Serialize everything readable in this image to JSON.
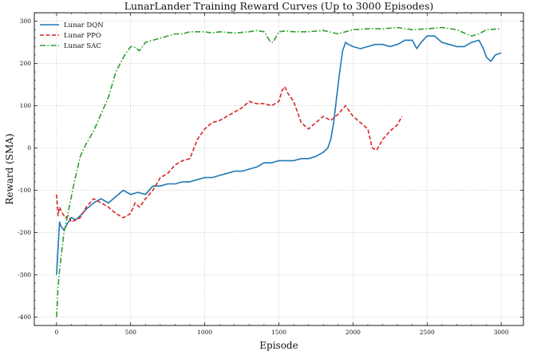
{
  "chart_data": {
    "type": "line",
    "title": "LunarLander Training Reward Curves (Up to 3000 Episodes)",
    "xlabel": "Episode",
    "ylabel": "Reward (SMA)",
    "xlim": [
      -150,
      3150
    ],
    "ylim": [
      -420,
      320
    ],
    "xticks": [
      0,
      500,
      1000,
      1500,
      2000,
      2500,
      3000
    ],
    "yticks": [
      -400,
      -300,
      -200,
      -100,
      0,
      100,
      200,
      300
    ],
    "grid": true,
    "legend_position": "top-left",
    "series": [
      {
        "name": "Lunar DQN",
        "color": "#1f77b4",
        "dash": "solid",
        "x": [
          0,
          10,
          20,
          30,
          50,
          70,
          100,
          130,
          160,
          200,
          250,
          300,
          350,
          400,
          450,
          500,
          550,
          600,
          650,
          700,
          750,
          800,
          850,
          900,
          950,
          1000,
          1050,
          1100,
          1150,
          1200,
          1250,
          1300,
          1350,
          1400,
          1450,
          1500,
          1550,
          1600,
          1650,
          1700,
          1750,
          1800,
          1830,
          1850,
          1870,
          1890,
          1910,
          1930,
          1950,
          1970,
          2000,
          2050,
          2100,
          2150,
          2200,
          2250,
          2300,
          2350,
          2400,
          2430,
          2460,
          2500,
          2550,
          2600,
          2650,
          2700,
          2750,
          2800,
          2850,
          2880,
          2900,
          2930,
          2960,
          3000
        ],
        "y": [
          -300,
          -240,
          -175,
          -185,
          -195,
          -180,
          -165,
          -170,
          -160,
          -145,
          -130,
          -120,
          -130,
          -115,
          -100,
          -110,
          -105,
          -110,
          -90,
          -90,
          -85,
          -85,
          -80,
          -80,
          -75,
          -70,
          -70,
          -65,
          -60,
          -55,
          -55,
          -50,
          -45,
          -35,
          -35,
          -30,
          -30,
          -30,
          -25,
          -25,
          -20,
          -10,
          0,
          20,
          60,
          120,
          180,
          230,
          250,
          245,
          240,
          235,
          240,
          245,
          245,
          240,
          245,
          255,
          255,
          235,
          250,
          265,
          265,
          250,
          245,
          240,
          240,
          250,
          255,
          235,
          215,
          205,
          220,
          225
        ]
      },
      {
        "name": "Lunar PPO",
        "color": "#d62728",
        "dash": "dashed",
        "x": [
          0,
          10,
          20,
          40,
          60,
          80,
          100,
          130,
          160,
          200,
          250,
          300,
          350,
          400,
          450,
          500,
          530,
          560,
          600,
          650,
          700,
          750,
          800,
          850,
          900,
          950,
          1000,
          1050,
          1100,
          1150,
          1200,
          1250,
          1300,
          1350,
          1400,
          1450,
          1500,
          1520,
          1540,
          1560,
          1600,
          1650,
          1700,
          1750,
          1800,
          1850,
          1900,
          1950,
          2000,
          2050,
          2100,
          2130,
          2160,
          2200,
          2250,
          2300,
          2330
        ],
        "y": [
          -110,
          -160,
          -140,
          -155,
          -165,
          -160,
          -175,
          -170,
          -165,
          -140,
          -120,
          -130,
          -140,
          -155,
          -165,
          -155,
          -130,
          -140,
          -120,
          -100,
          -70,
          -60,
          -40,
          -30,
          -25,
          20,
          45,
          60,
          65,
          75,
          85,
          95,
          110,
          105,
          105,
          100,
          110,
          135,
          145,
          130,
          110,
          60,
          45,
          60,
          75,
          65,
          80,
          100,
          75,
          60,
          45,
          0,
          -5,
          20,
          40,
          55,
          75
        ]
      },
      {
        "name": "Lunar SAC",
        "color": "#2ca02c",
        "dash": "dashdot",
        "x": [
          0,
          5,
          10,
          20,
          30,
          50,
          80,
          120,
          160,
          200,
          250,
          300,
          350,
          400,
          430,
          460,
          500,
          530,
          560,
          600,
          650,
          700,
          750,
          800,
          850,
          900,
          950,
          1000,
          1050,
          1100,
          1200,
          1300,
          1350,
          1400,
          1420,
          1440,
          1460,
          1480,
          1500,
          1550,
          1600,
          1700,
          1800,
          1900,
          1950,
          2000,
          2100,
          2200,
          2300,
          2400,
          2500,
          2600,
          2700,
          2750,
          2800,
          2850,
          2900,
          3000
        ],
        "y": [
          -400,
          -370,
          -330,
          -290,
          -260,
          -200,
          -150,
          -80,
          -20,
          10,
          40,
          80,
          120,
          180,
          200,
          220,
          240,
          238,
          230,
          250,
          255,
          260,
          265,
          270,
          270,
          275,
          275,
          275,
          272,
          275,
          272,
          275,
          278,
          275,
          265,
          252,
          250,
          262,
          275,
          277,
          275,
          275,
          278,
          270,
          275,
          280,
          282,
          282,
          285,
          280,
          282,
          285,
          280,
          272,
          265,
          270,
          280,
          282
        ]
      }
    ]
  }
}
